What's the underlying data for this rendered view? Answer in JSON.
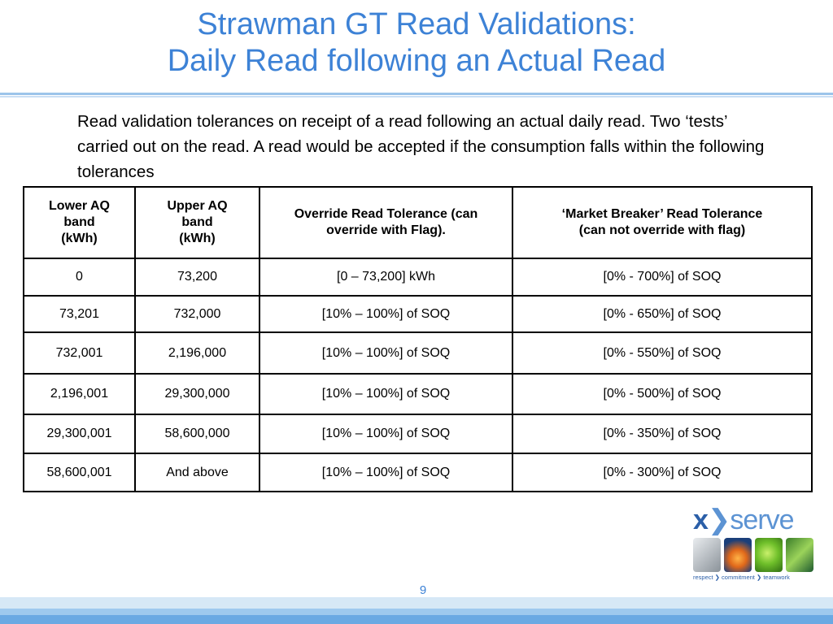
{
  "slide": {
    "title_line1": "Strawman GT Read Validations:",
    "title_line2": "Daily Read following an Actual Read",
    "intro": "Read validation tolerances on receipt of a read following an actual daily read. Two ‘tests’ carried out on the read. A read would be accepted if the consumption falls within the following tolerances",
    "page_number": "9"
  },
  "table": {
    "headers": [
      [
        "Lower AQ",
        "band",
        "(kWh)"
      ],
      [
        "Upper AQ",
        "band",
        "(kWh)"
      ],
      [
        "Override Read Tolerance (can",
        "override with Flag)."
      ],
      [
        "‘Market Breaker’ Read Tolerance",
        "(can not override with flag)"
      ]
    ],
    "rows": [
      [
        "0",
        "73,200",
        "[0 – 73,200] kWh",
        "[0% - 700%] of SOQ"
      ],
      [
        "73,201",
        "732,000",
        "[10% – 100%] of SOQ",
        "[0% - 650%] of SOQ"
      ],
      [
        "732,001",
        "2,196,000",
        "[10% – 100%] of SOQ",
        "[0% - 550%] of SOQ"
      ],
      [
        "2,196,001",
        "29,300,000",
        "[10% – 100%] of SOQ",
        "[0% - 500%] of SOQ"
      ],
      [
        "29,300,001",
        "58,600,000",
        "[10% – 100%] of SOQ",
        "[0% - 350%] of SOQ"
      ],
      [
        "58,600,001",
        "And above",
        "[10% – 100%] of SOQ",
        "[0% - 300%] of SOQ"
      ]
    ]
  },
  "logo": {
    "wordmark_prefix": "x",
    "wordmark_rest": "serve",
    "tagline": "respect ❯ commitment ❯ teamwork"
  },
  "colors": {
    "title": "#3d82d6",
    "rule": "#9cc4ea",
    "logo_blue": "#5c93d3",
    "footer_band": "#6aa9e3"
  }
}
